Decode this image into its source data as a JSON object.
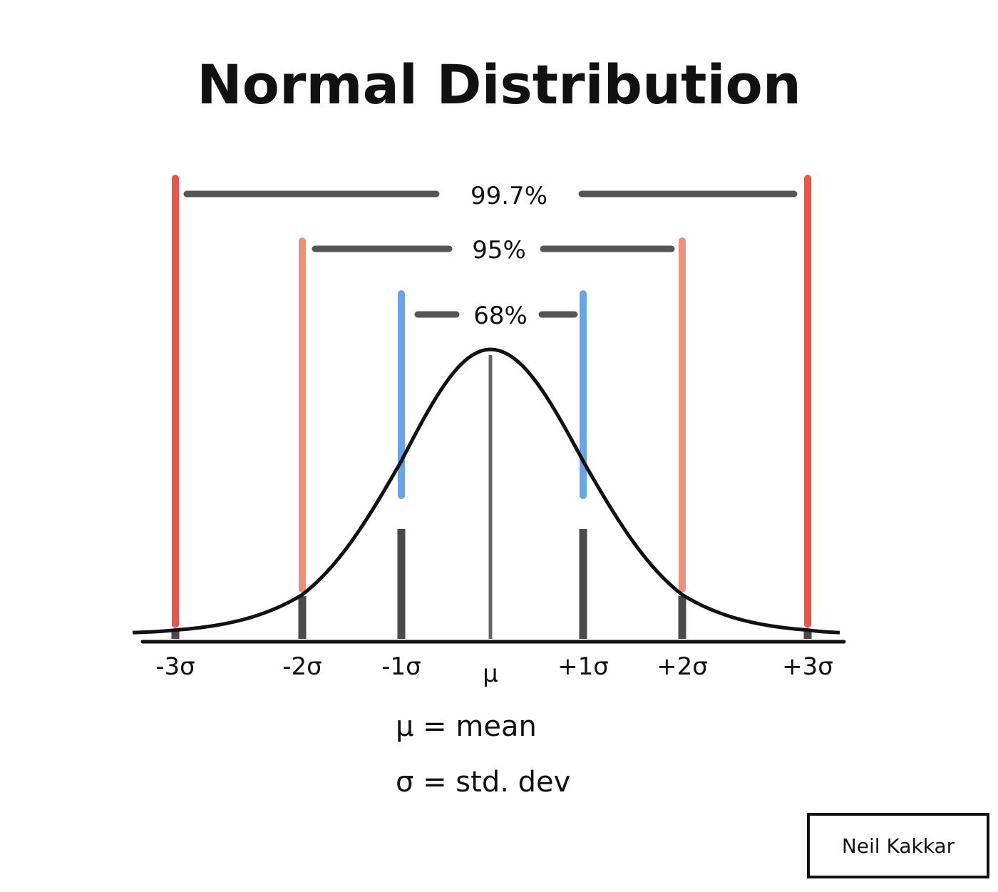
{
  "title": "Normal Distribution",
  "ranges": [
    {
      "label": "99.7%",
      "from_sigma": -3,
      "to_sigma": 3,
      "color": "#e8554a"
    },
    {
      "label": "95%",
      "from_sigma": -2,
      "to_sigma": 2,
      "color": "#f0907a"
    },
    {
      "label": "68%",
      "from_sigma": -1,
      "to_sigma": 1,
      "color": "#6aa3e8"
    }
  ],
  "ticks": [
    {
      "label": "-3σ",
      "sigma": -3
    },
    {
      "label": "-2σ",
      "sigma": -2
    },
    {
      "label": "-1σ",
      "sigma": -1
    },
    {
      "label": "μ",
      "sigma": 0
    },
    {
      "label": "+1σ",
      "sigma": 1
    },
    {
      "label": "+2σ",
      "sigma": 2
    },
    {
      "label": "+3σ",
      "sigma": 3
    }
  ],
  "legend": {
    "mean": "μ = mean",
    "std": "σ = std. dev"
  },
  "credit": "Neil Kakkar",
  "colors": {
    "ink": "#111111",
    "bracket": "#555555",
    "center_line": "#666666"
  }
}
